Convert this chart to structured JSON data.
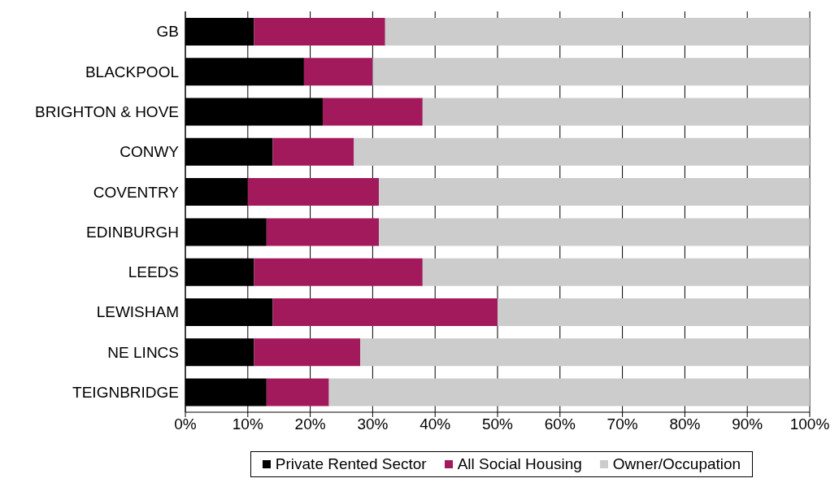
{
  "chart_data": {
    "type": "bar",
    "orientation": "horizontal",
    "stacked": true,
    "categories": [
      "GB",
      "BLACKPOOL",
      "BRIGHTON & HOVE",
      "CONWY",
      "COVENTRY",
      "EDINBURGH",
      "LEEDS",
      "LEWISHAM",
      "NE LINCS",
      "TEIGNBRIDGE"
    ],
    "series": [
      {
        "name": "Private Rented Sector",
        "color": "#000000",
        "values": [
          11,
          19,
          22,
          14,
          10,
          13,
          11,
          14,
          11,
          13
        ]
      },
      {
        "name": "All Social Housing",
        "color": "#a31a5c",
        "values": [
          21,
          11,
          16,
          13,
          21,
          18,
          27,
          36,
          17,
          10
        ]
      },
      {
        "name": "Owner/Occupation",
        "color": "#cccccc",
        "values": [
          68,
          70,
          62,
          73,
          69,
          69,
          62,
          50,
          72,
          77
        ]
      }
    ],
    "xlim": [
      0,
      100
    ],
    "xticks": [
      {
        "value": 0,
        "label": "0%"
      },
      {
        "value": 10,
        "label": "10%"
      },
      {
        "value": 20,
        "label": "20%"
      },
      {
        "value": 30,
        "label": "30%"
      },
      {
        "value": 40,
        "label": "40%"
      },
      {
        "value": 50,
        "label": "50%"
      },
      {
        "value": 60,
        "label": "60%"
      },
      {
        "value": 70,
        "label": "70%"
      },
      {
        "value": 80,
        "label": "80%"
      },
      {
        "value": 90,
        "label": "90%"
      },
      {
        "value": 100,
        "label": "100%"
      }
    ],
    "grid": "x",
    "legend": "bottom"
  }
}
